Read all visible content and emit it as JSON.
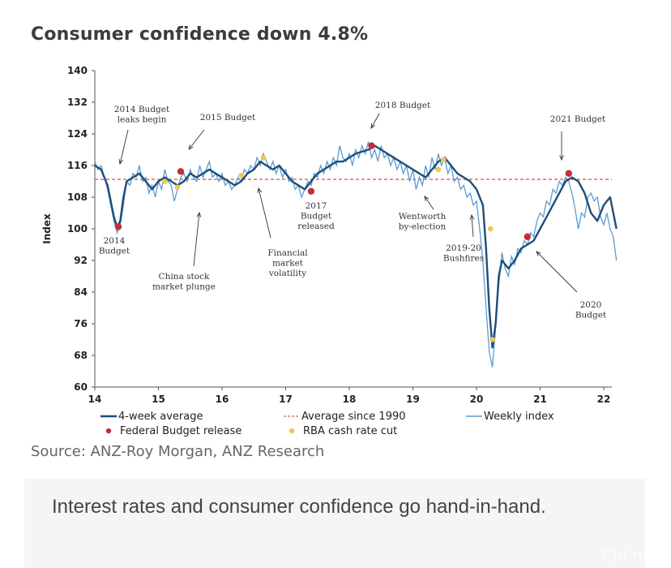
{
  "chart_data": {
    "type": "line",
    "title": "Consumer confidence down 4.8%",
    "ylabel": "Index",
    "xlabel": "",
    "ylim": [
      60,
      140
    ],
    "xlim": [
      14,
      22.2
    ],
    "y_ticks": [
      60,
      68,
      76,
      84,
      92,
      100,
      108,
      116,
      124,
      132,
      140
    ],
    "x_ticks": [
      {
        "value": 14,
        "label": "14"
      },
      {
        "value": 15,
        "label": "15"
      },
      {
        "value": 16,
        "label": "16"
      },
      {
        "value": 17,
        "label": "17"
      },
      {
        "value": 18,
        "label": "18"
      },
      {
        "value": 19,
        "label": "19"
      },
      {
        "value": 20,
        "label": "20"
      },
      {
        "value": 21,
        "label": "21"
      },
      {
        "value": 22,
        "label": "22"
      }
    ],
    "grid": false,
    "legend_placement": "bottom",
    "series": [
      {
        "name": "4-week average",
        "color": "#1f4e79",
        "x": [
          14.0,
          14.1,
          14.2,
          14.3,
          14.35,
          14.4,
          14.45,
          14.5,
          14.6,
          14.7,
          14.8,
          14.9,
          15.0,
          15.1,
          15.2,
          15.3,
          15.4,
          15.5,
          15.6,
          15.7,
          15.8,
          15.9,
          16.0,
          16.1,
          16.2,
          16.3,
          16.4,
          16.5,
          16.6,
          16.7,
          16.8,
          16.9,
          17.0,
          17.1,
          17.2,
          17.3,
          17.4,
          17.5,
          17.6,
          17.7,
          17.8,
          17.9,
          18.0,
          18.1,
          18.2,
          18.3,
          18.4,
          18.5,
          18.6,
          18.7,
          18.8,
          18.9,
          19.0,
          19.1,
          19.2,
          19.3,
          19.4,
          19.5,
          19.6,
          19.7,
          19.8,
          19.9,
          20.0,
          20.1,
          20.15,
          20.2,
          20.25,
          20.3,
          20.35,
          20.4,
          20.5,
          20.6,
          20.7,
          20.8,
          20.9,
          21.0,
          21.1,
          21.2,
          21.3,
          21.4,
          21.5,
          21.6,
          21.7,
          21.8,
          21.9,
          22.0,
          22.1,
          22.15,
          22.2
        ],
        "y": [
          116,
          115,
          111,
          103,
          100.5,
          102,
          108,
          112,
          113,
          114,
          112,
          110,
          112,
          113,
          112,
          111,
          112,
          114,
          113,
          114,
          115,
          114,
          113,
          112,
          111,
          112,
          114,
          115,
          117,
          116,
          115,
          116,
          114,
          112,
          111,
          110,
          112,
          114,
          115,
          116,
          117,
          117,
          118,
          119,
          119.5,
          120,
          121,
          120,
          119,
          118,
          117,
          116,
          115,
          114,
          113,
          115,
          117,
          118,
          116,
          114,
          113,
          112,
          110,
          106,
          95,
          80,
          70,
          76,
          88,
          92,
          90,
          92,
          95,
          96,
          97,
          100,
          103,
          106,
          109,
          112,
          113,
          112,
          109,
          104,
          102,
          106,
          108,
          104,
          100
        ]
      },
      {
        "name": "Weekly index",
        "color": "#5b9bd5",
        "x": [
          14.0,
          14.05,
          14.1,
          14.15,
          14.2,
          14.25,
          14.3,
          14.35,
          14.4,
          14.45,
          14.5,
          14.55,
          14.6,
          14.65,
          14.7,
          14.75,
          14.8,
          14.85,
          14.9,
          14.95,
          15.0,
          15.05,
          15.1,
          15.15,
          15.2,
          15.25,
          15.3,
          15.35,
          15.4,
          15.45,
          15.5,
          15.55,
          15.6,
          15.65,
          15.7,
          15.75,
          15.8,
          15.85,
          15.9,
          15.95,
          16.0,
          16.05,
          16.1,
          16.15,
          16.2,
          16.25,
          16.3,
          16.35,
          16.4,
          16.45,
          16.5,
          16.55,
          16.6,
          16.65,
          16.7,
          16.75,
          16.8,
          16.85,
          16.9,
          16.95,
          17.0,
          17.05,
          17.1,
          17.15,
          17.2,
          17.25,
          17.3,
          17.35,
          17.4,
          17.45,
          17.5,
          17.55,
          17.6,
          17.65,
          17.7,
          17.75,
          17.8,
          17.85,
          17.9,
          17.95,
          18.0,
          18.05,
          18.1,
          18.15,
          18.2,
          18.25,
          18.3,
          18.35,
          18.4,
          18.45,
          18.5,
          18.55,
          18.6,
          18.65,
          18.7,
          18.75,
          18.8,
          18.85,
          18.9,
          18.95,
          19.0,
          19.05,
          19.1,
          19.15,
          19.2,
          19.25,
          19.3,
          19.35,
          19.4,
          19.45,
          19.5,
          19.55,
          19.6,
          19.65,
          19.7,
          19.75,
          19.8,
          19.85,
          19.9,
          19.95,
          20.0,
          20.05,
          20.1,
          20.15,
          20.2,
          20.25,
          20.3,
          20.35,
          20.4,
          20.45,
          20.5,
          20.55,
          20.6,
          20.65,
          20.7,
          20.75,
          20.8,
          20.85,
          20.9,
          20.95,
          21.0,
          21.05,
          21.1,
          21.15,
          21.2,
          21.25,
          21.3,
          21.35,
          21.4,
          21.45,
          21.5,
          21.55,
          21.6,
          21.65,
          21.7,
          21.75,
          21.8,
          21.85,
          21.9,
          21.95,
          22.0,
          22.05,
          22.1,
          22.15,
          22.2
        ],
        "y": [
          117,
          115,
          116,
          113,
          110,
          106,
          102,
          99,
          101,
          106,
          112,
          111,
          114,
          113,
          116,
          112,
          113,
          109,
          111,
          108,
          112,
          110,
          115,
          112,
          111,
          107,
          110,
          113,
          114,
          112,
          115,
          113,
          112,
          116,
          113,
          115,
          117,
          113,
          114,
          112,
          114,
          111,
          112,
          110,
          111,
          113,
          112,
          115,
          114,
          116,
          115,
          118,
          116,
          119,
          117,
          115,
          117,
          114,
          116,
          113,
          115,
          112,
          113,
          110,
          111,
          108,
          110,
          112,
          111,
          114,
          113,
          116,
          114,
          117,
          115,
          118,
          116,
          121,
          118,
          117,
          119,
          116,
          120,
          118,
          121,
          119,
          122,
          118,
          120,
          117,
          121,
          118,
          119,
          116,
          118,
          115,
          117,
          114,
          116,
          112,
          115,
          110,
          113,
          111,
          116,
          113,
          118,
          115,
          119,
          116,
          118,
          114,
          116,
          112,
          113,
          110,
          111,
          108,
          109,
          106,
          107,
          100,
          92,
          80,
          69,
          65,
          75,
          86,
          94,
          90,
          88,
          93,
          91,
          95,
          94,
          97,
          96,
          99,
          98,
          102,
          104,
          103,
          107,
          106,
          110,
          109,
          112,
          111,
          113,
          112,
          109,
          105,
          100,
          104,
          103,
          108,
          109,
          107,
          108,
          103,
          101,
          104,
          100,
          98,
          92
        ]
      },
      {
        "name": "Average since 1990",
        "color": "#e05a5a",
        "value": 112.5
      }
    ],
    "markers": {
      "federal_budget_release": {
        "name": "Federal Budget release",
        "color": "#c0303a",
        "points": [
          {
            "x": 14.37,
            "y": 100.5
          },
          {
            "x": 15.35,
            "y": 114.5
          },
          {
            "x": 17.4,
            "y": 109.5
          },
          {
            "x": 18.35,
            "y": 121
          },
          {
            "x": 20.8,
            "y": 98
          },
          {
            "x": 21.45,
            "y": 114
          }
        ]
      },
      "rba_cash_rate_cut": {
        "name": "RBA cash rate cut",
        "color": "#f2c84b",
        "points": [
          {
            "x": 15.1,
            "y": 112
          },
          {
            "x": 15.3,
            "y": 110.5
          },
          {
            "x": 16.3,
            "y": 113.5
          },
          {
            "x": 16.65,
            "y": 118
          },
          {
            "x": 19.4,
            "y": 115
          },
          {
            "x": 19.48,
            "y": 117.5
          },
          {
            "x": 20.22,
            "y": 100
          },
          {
            "x": 20.25,
            "y": 72
          }
        ]
      }
    },
    "annotations": [
      {
        "id": "2014-leaks",
        "lines": [
          "2014 Budget",
          "leaks begin"
        ]
      },
      {
        "id": "2015-budget",
        "lines": [
          "2015 Budget"
        ]
      },
      {
        "id": "2018-budget",
        "lines": [
          "2018 Budget"
        ]
      },
      {
        "id": "2021-budget",
        "lines": [
          "2021 Budget"
        ]
      },
      {
        "id": "2014-budget",
        "lines": [
          "2014",
          "Budget"
        ]
      },
      {
        "id": "china-stock",
        "lines": [
          "China stock",
          "market plunge"
        ]
      },
      {
        "id": "financial-volatility",
        "lines": [
          "Financial",
          "market",
          "volatility"
        ]
      },
      {
        "id": "2017-budget",
        "lines": [
          "2017",
          "Budget",
          "released"
        ]
      },
      {
        "id": "wentworth",
        "lines": [
          "Wentworth",
          "by-election"
        ]
      },
      {
        "id": "bushfires",
        "lines": [
          "2019-20",
          "Bushfires"
        ]
      },
      {
        "id": "2020-budget",
        "lines": [
          "2020",
          "Budget"
        ]
      }
    ],
    "legend": {
      "avg": "4-week average",
      "avg1990": "Average since 1990",
      "weekly": "Weekly index",
      "budget": "Federal Budget release",
      "rba": "RBA cash rate cut"
    }
  },
  "source": "Source: ANZ-Roy Morgan, ANZ Research",
  "caption": "Interest rates and consumer confidence go hand-in-hand.",
  "watermark": "Chi.na2"
}
